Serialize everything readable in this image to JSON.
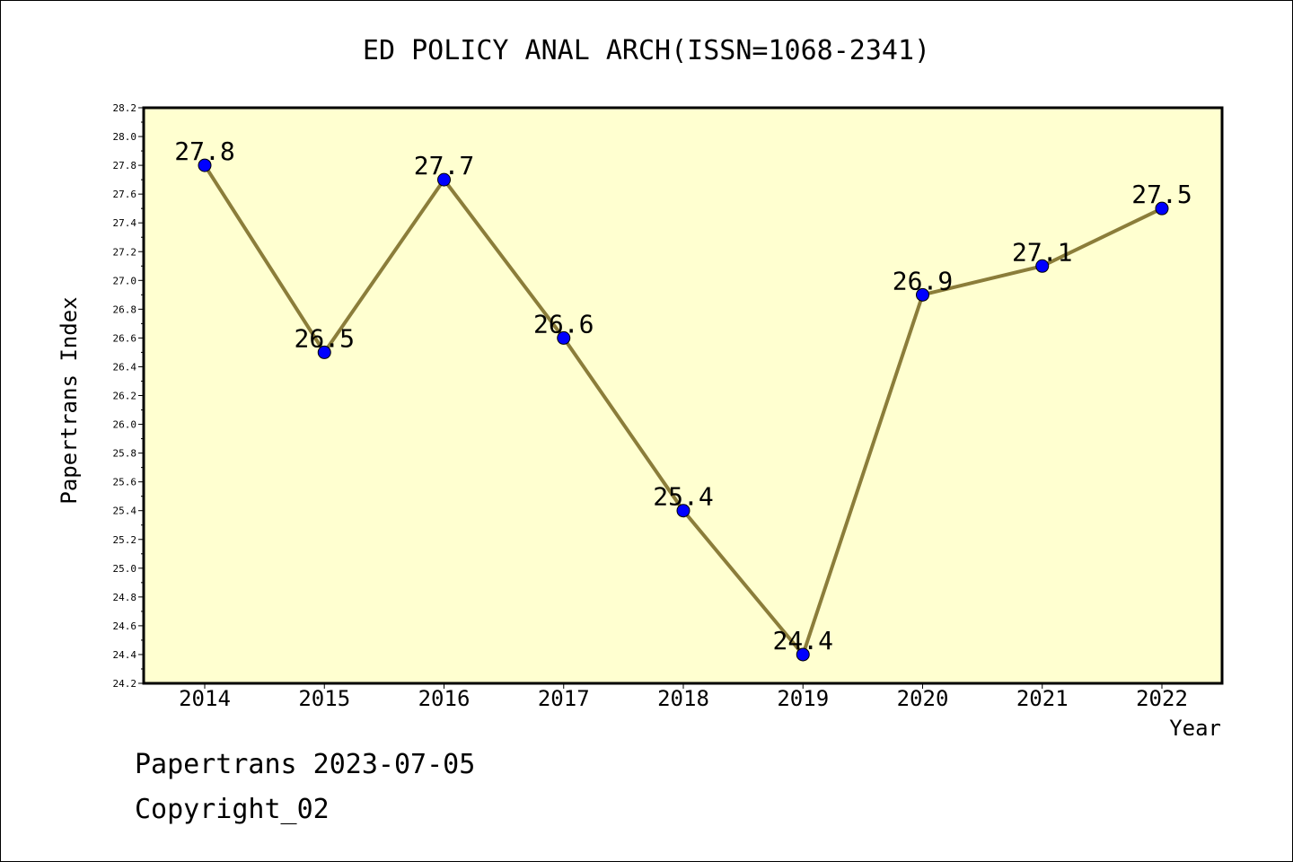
{
  "chart_data": {
    "type": "line",
    "title": "ED POLICY ANAL ARCH(ISSN=1068-2341)",
    "xlabel": "Year",
    "ylabel": "Papertrans Index",
    "categories": [
      "2014",
      "2015",
      "2016",
      "2017",
      "2018",
      "2019",
      "2020",
      "2021",
      "2022"
    ],
    "values": [
      27.8,
      26.5,
      27.7,
      26.6,
      25.4,
      24.4,
      26.9,
      27.1,
      27.5
    ],
    "data_labels": [
      "27.8",
      "26.5",
      "27.7",
      "26.6",
      "25.4",
      "24.4",
      "26.9",
      "27.1",
      "27.5"
    ],
    "ylim": [
      24.2,
      28.2
    ],
    "yticks": [
      "24.2",
      "24.4",
      "24.6",
      "24.8",
      "25.0",
      "25.2",
      "25.4",
      "25.6",
      "25.8",
      "26.0",
      "26.2",
      "26.4",
      "26.6",
      "26.8",
      "27.0",
      "27.2",
      "27.4",
      "27.6",
      "27.8",
      "28.0",
      "28.2"
    ],
    "grid": false,
    "colors": {
      "plot_background": "#ffffd0",
      "line": "#8b7d3a",
      "marker": "#0000ff"
    }
  },
  "footer": {
    "line1": "Papertrans 2023-07-05",
    "line2": "Copyright_02"
  }
}
